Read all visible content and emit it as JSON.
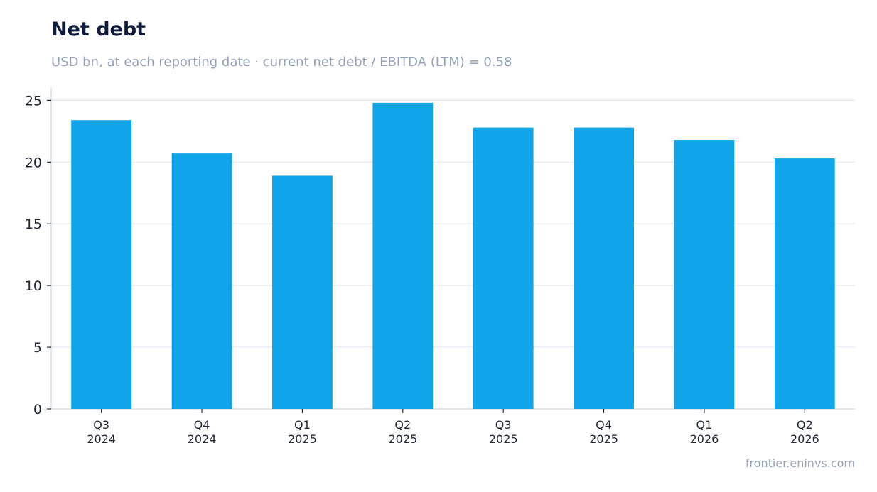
{
  "header": {
    "title": "Net debt",
    "subtitle": "USD bn, at each reporting date · current net debt / EBITDA (LTM) = 0.58"
  },
  "footer": {
    "source": "frontier.eninvs.com"
  },
  "chart_data": {
    "type": "bar",
    "title": "Net debt",
    "subtitle": "USD bn, at each reporting date · current net debt / EBITDA (LTM) = 0.58",
    "xlabel": "",
    "ylabel": "",
    "categories": [
      [
        "Q3",
        "2024"
      ],
      [
        "Q4",
        "2024"
      ],
      [
        "Q1",
        "2025"
      ],
      [
        "Q2",
        "2025"
      ],
      [
        "Q3",
        "2025"
      ],
      [
        "Q4",
        "2025"
      ],
      [
        "Q1",
        "2026"
      ],
      [
        "Q2",
        "2026"
      ]
    ],
    "values": [
      23.4,
      20.7,
      18.9,
      24.8,
      22.8,
      22.8,
      21.8,
      20.3
    ],
    "ylim": [
      0,
      26
    ],
    "yticks": [
      0,
      5,
      10,
      15,
      20,
      25
    ],
    "grid": true,
    "legend": "none",
    "colors": {
      "bar": "#10a5e8",
      "grid": "#e2e8f0",
      "axis": "#cbd5e1"
    }
  }
}
